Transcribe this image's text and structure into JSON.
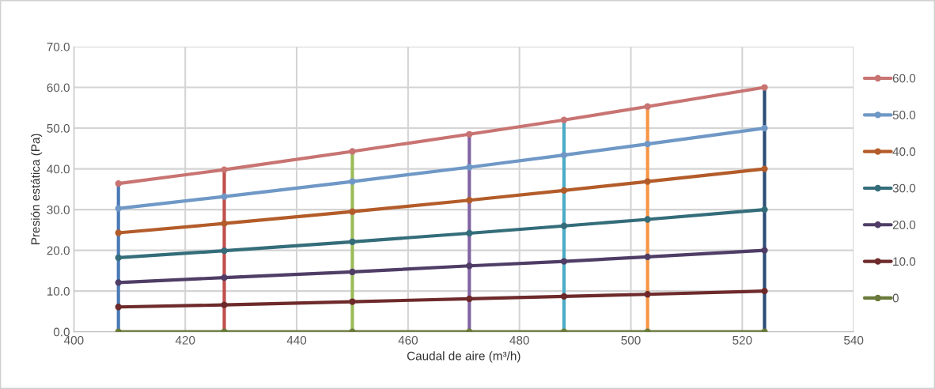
{
  "chart_data": {
    "type": "line",
    "xlabel": "Caudal de aire (m³/h)",
    "ylabel": "Presión estática (Pa)",
    "xlim": [
      400,
      540
    ],
    "xticks": [
      400,
      420,
      440,
      460,
      480,
      500,
      520,
      540
    ],
    "ylim": [
      0,
      70
    ],
    "yticks": [
      {
        "value": 0,
        "label": "0.0"
      },
      {
        "value": 10,
        "label": "10.0"
      },
      {
        "value": 20,
        "label": "20.0"
      },
      {
        "value": 30,
        "label": "30.0"
      },
      {
        "value": 40,
        "label": "40.0"
      },
      {
        "value": 50,
        "label": "50.0"
      },
      {
        "value": 60,
        "label": "60.0"
      },
      {
        "value": 70,
        "label": "70.0"
      }
    ],
    "grid": true,
    "legend": "right",
    "marker": "circle",
    "line_style": "solid",
    "x": [
      408,
      427,
      450,
      471,
      488,
      503,
      524
    ],
    "series": [
      {
        "name": "60.0",
        "color": "#c87472",
        "values": [
          36.4,
          39.8,
          44.3,
          48.5,
          52.0,
          55.3,
          60.0
        ]
      },
      {
        "name": "50.0",
        "color": "#6f98c6",
        "values": [
          30.3,
          33.2,
          36.9,
          40.4,
          43.4,
          46.1,
          50.0
        ]
      },
      {
        "name": "40.0",
        "color": "#b35c2a",
        "values": [
          24.3,
          26.6,
          29.5,
          32.3,
          34.7,
          36.9,
          40.0
        ]
      },
      {
        "name": "30.0",
        "color": "#346d7a",
        "values": [
          18.2,
          19.9,
          22.1,
          24.2,
          26.0,
          27.6,
          30.0
        ]
      },
      {
        "name": "20.0",
        "color": "#4f3d66",
        "values": [
          12.1,
          13.3,
          14.7,
          16.2,
          17.3,
          18.4,
          20.0
        ]
      },
      {
        "name": "10.0",
        "color": "#6e2a2a",
        "values": [
          6.1,
          6.6,
          7.4,
          8.1,
          8.7,
          9.2,
          10.0
        ]
      },
      {
        "name": "0",
        "color": "#6a7a3a",
        "values": [
          0,
          0,
          0,
          0,
          0,
          0,
          0
        ]
      },
      {
        "color": "#4a7ab5",
        "marker": "none",
        "x": [
          408,
          408
        ],
        "values": [
          0,
          36.4
        ]
      },
      {
        "color": "#c0504d",
        "marker": "none",
        "x": [
          427,
          427
        ],
        "values": [
          0,
          39.8
        ]
      },
      {
        "color": "#9bbb59",
        "marker": "none",
        "x": [
          450,
          450
        ],
        "values": [
          0,
          44.3
        ]
      },
      {
        "color": "#8064a2",
        "marker": "none",
        "x": [
          471,
          471
        ],
        "values": [
          0,
          48.5
        ]
      },
      {
        "color": "#4bacc6",
        "marker": "none",
        "x": [
          488,
          488
        ],
        "values": [
          0,
          52.0
        ]
      },
      {
        "color": "#f79646",
        "marker": "none",
        "x": [
          503,
          503
        ],
        "values": [
          0,
          55.3
        ]
      },
      {
        "color": "#2c4d75",
        "marker": "none",
        "x": [
          524,
          524
        ],
        "values": [
          0,
          60.0
        ]
      }
    ]
  }
}
